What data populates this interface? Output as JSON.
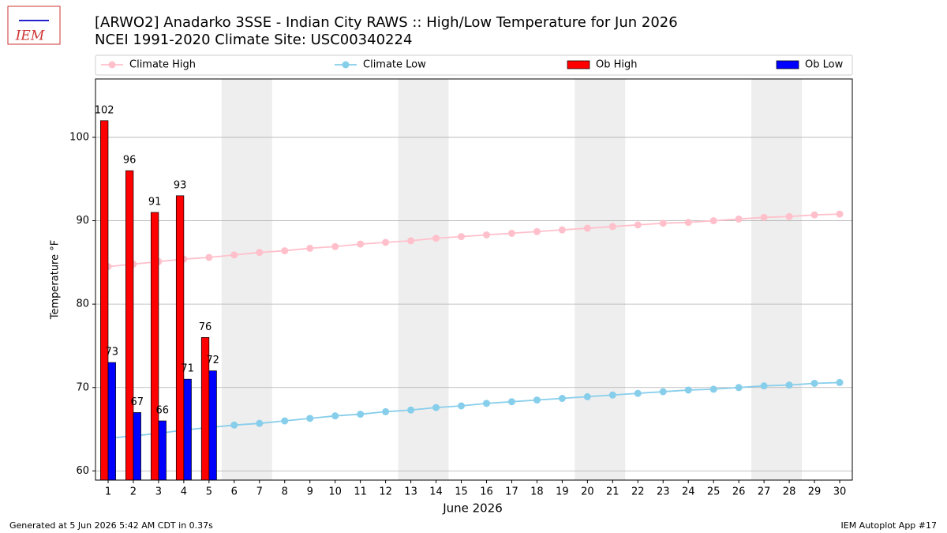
{
  "logo_text": "IEM",
  "footer_left": "Generated at 5 Jun 2026 5:42 AM CDT in 0.37s",
  "footer_right": "IEM Autoplot App #17",
  "chart_data": {
    "type": "bar_line",
    "title": "[ARWO2] Anadarko 3SSE - Indian City RAWS :: High/Low Temperature for Jun 2026",
    "subtitle": "NCEI 1991-2020 Climate Site: USC00340224",
    "xlabel": "June 2026",
    "ylabel": "Temperature °F",
    "x": [
      1,
      2,
      3,
      4,
      5,
      6,
      7,
      8,
      9,
      10,
      11,
      12,
      13,
      14,
      15,
      16,
      17,
      18,
      19,
      20,
      21,
      22,
      23,
      24,
      25,
      26,
      27,
      28,
      29,
      30
    ],
    "xlim": [
      0.5,
      30.5
    ],
    "xticks": [
      1,
      2,
      3,
      4,
      5,
      6,
      7,
      8,
      9,
      10,
      11,
      12,
      13,
      14,
      15,
      16,
      17,
      18,
      19,
      20,
      21,
      22,
      23,
      24,
      25,
      26,
      27,
      28,
      29,
      30
    ],
    "ylim": [
      58.9,
      107
    ],
    "yticks": [
      60,
      70,
      80,
      90,
      100
    ],
    "grid": true,
    "legend": "top",
    "shaded_spans": [
      [
        5.5,
        7.5
      ],
      [
        12.5,
        14.5
      ],
      [
        19.5,
        21.5
      ],
      [
        26.5,
        28.5
      ]
    ],
    "series": [
      {
        "name": "Climate High",
        "kind": "line",
        "color": "#ffc0cb",
        "values": [
          84.5,
          84.8,
          85.1,
          85.4,
          85.6,
          85.9,
          86.2,
          86.4,
          86.7,
          86.9,
          87.2,
          87.4,
          87.6,
          87.9,
          88.1,
          88.3,
          88.5,
          88.7,
          88.9,
          89.1,
          89.3,
          89.5,
          89.7,
          89.8,
          90.0,
          90.2,
          90.4,
          90.5,
          90.7,
          90.8
        ]
      },
      {
        "name": "Climate Low",
        "kind": "line",
        "color": "#87ceeb",
        "values": [
          63.9,
          64.2,
          64.5,
          64.9,
          65.2,
          65.5,
          65.7,
          66.0,
          66.3,
          66.6,
          66.8,
          67.1,
          67.3,
          67.6,
          67.8,
          68.1,
          68.3,
          68.5,
          68.7,
          68.9,
          69.1,
          69.3,
          69.5,
          69.7,
          69.8,
          70.0,
          70.2,
          70.3,
          70.5,
          70.6
        ]
      },
      {
        "name": "Ob High",
        "kind": "bar",
        "color": "#ff0000",
        "values": [
          102,
          96,
          91,
          93,
          76,
          null,
          null,
          null,
          null,
          null,
          null,
          null,
          null,
          null,
          null,
          null,
          null,
          null,
          null,
          null,
          null,
          null,
          null,
          null,
          null,
          null,
          null,
          null,
          null,
          null
        ]
      },
      {
        "name": "Ob Low",
        "kind": "bar",
        "color": "#0000ff",
        "values": [
          73,
          67,
          66,
          71,
          72,
          null,
          null,
          null,
          null,
          null,
          null,
          null,
          null,
          null,
          null,
          null,
          null,
          null,
          null,
          null,
          null,
          null,
          null,
          null,
          null,
          null,
          null,
          null,
          null,
          null
        ]
      }
    ]
  }
}
